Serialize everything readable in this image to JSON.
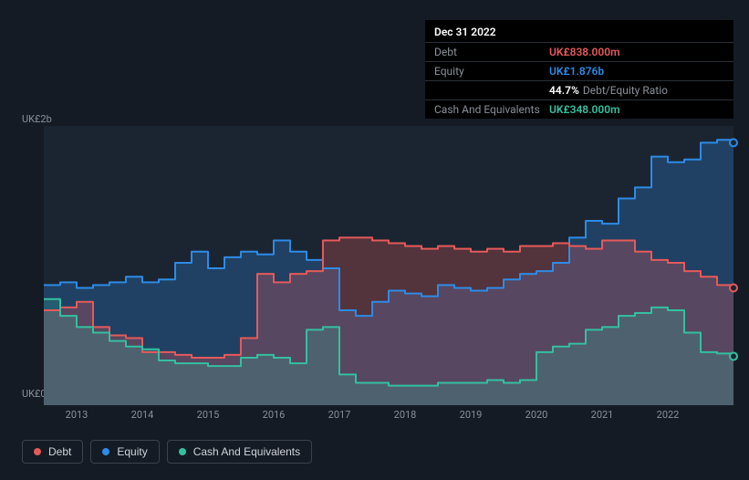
{
  "tooltip": {
    "date": "Dec 31 2022",
    "rows": {
      "debt": {
        "label": "Debt",
        "value": "UK£838.000m"
      },
      "equity": {
        "label": "Equity",
        "value": "UK£1.876b"
      },
      "ratio": {
        "value": "44.7%",
        "suffix": "Debt/Equity Ratio"
      },
      "cash": {
        "label": "Cash And Equivalents",
        "value": "UK£348.000m"
      }
    }
  },
  "chart": {
    "background_color": "#1b2531",
    "page_background": "#151b24",
    "ylim": [
      0,
      2.0
    ],
    "y_ticks": [
      {
        "v": 0,
        "label": "UK£0"
      },
      {
        "v": 2.0,
        "label": "UK£2b"
      }
    ],
    "x_domain": [
      2012.5,
      2023.0
    ],
    "x_ticks": [
      2013,
      2014,
      2015,
      2016,
      2017,
      2018,
      2019,
      2020,
      2021,
      2022
    ],
    "series": {
      "debt": {
        "label": "Debt",
        "stroke": "#e65a5a",
        "fill": "#e65a5a",
        "fill_opacity": 0.28,
        "line_width": 2,
        "values": [
          [
            2012.5,
            0.68
          ],
          [
            2012.75,
            0.7
          ],
          [
            2013.0,
            0.74
          ],
          [
            2013.25,
            0.56
          ],
          [
            2013.5,
            0.5
          ],
          [
            2013.75,
            0.48
          ],
          [
            2014.0,
            0.38
          ],
          [
            2014.25,
            0.38
          ],
          [
            2014.5,
            0.36
          ],
          [
            2014.75,
            0.34
          ],
          [
            2015.0,
            0.34
          ],
          [
            2015.25,
            0.36
          ],
          [
            2015.5,
            0.48
          ],
          [
            2015.75,
            0.94
          ],
          [
            2016.0,
            0.88
          ],
          [
            2016.25,
            0.94
          ],
          [
            2016.5,
            0.96
          ],
          [
            2016.75,
            1.18
          ],
          [
            2017.0,
            1.2
          ],
          [
            2017.25,
            1.2
          ],
          [
            2017.5,
            1.18
          ],
          [
            2017.75,
            1.16
          ],
          [
            2018.0,
            1.14
          ],
          [
            2018.25,
            1.12
          ],
          [
            2018.5,
            1.14
          ],
          [
            2018.75,
            1.12
          ],
          [
            2019.0,
            1.1
          ],
          [
            2019.25,
            1.12
          ],
          [
            2019.5,
            1.1
          ],
          [
            2019.75,
            1.14
          ],
          [
            2020.0,
            1.14
          ],
          [
            2020.25,
            1.16
          ],
          [
            2020.5,
            1.14
          ],
          [
            2020.75,
            1.12
          ],
          [
            2021.0,
            1.18
          ],
          [
            2021.25,
            1.18
          ],
          [
            2021.5,
            1.1
          ],
          [
            2021.75,
            1.04
          ],
          [
            2022.0,
            1.02
          ],
          [
            2022.25,
            0.96
          ],
          [
            2022.5,
            0.92
          ],
          [
            2022.75,
            0.86
          ],
          [
            2023.0,
            0.84
          ]
        ]
      },
      "equity": {
        "label": "Equity",
        "stroke": "#2e8be6",
        "fill": "#2e8be6",
        "fill_opacity": 0.28,
        "line_width": 2,
        "values": [
          [
            2012.5,
            0.86
          ],
          [
            2012.75,
            0.88
          ],
          [
            2013.0,
            0.84
          ],
          [
            2013.25,
            0.86
          ],
          [
            2013.5,
            0.88
          ],
          [
            2013.75,
            0.92
          ],
          [
            2014.0,
            0.88
          ],
          [
            2014.25,
            0.9
          ],
          [
            2014.5,
            1.02
          ],
          [
            2014.75,
            1.1
          ],
          [
            2015.0,
            0.98
          ],
          [
            2015.25,
            1.06
          ],
          [
            2015.5,
            1.1
          ],
          [
            2015.75,
            1.08
          ],
          [
            2016.0,
            1.18
          ],
          [
            2016.25,
            1.1
          ],
          [
            2016.5,
            1.04
          ],
          [
            2016.75,
            0.98
          ],
          [
            2017.0,
            0.68
          ],
          [
            2017.25,
            0.64
          ],
          [
            2017.5,
            0.74
          ],
          [
            2017.75,
            0.82
          ],
          [
            2018.0,
            0.8
          ],
          [
            2018.25,
            0.78
          ],
          [
            2018.5,
            0.86
          ],
          [
            2018.75,
            0.84
          ],
          [
            2019.0,
            0.82
          ],
          [
            2019.25,
            0.84
          ],
          [
            2019.5,
            0.9
          ],
          [
            2019.75,
            0.94
          ],
          [
            2020.0,
            0.96
          ],
          [
            2020.25,
            1.02
          ],
          [
            2020.5,
            1.2
          ],
          [
            2020.75,
            1.32
          ],
          [
            2021.0,
            1.3
          ],
          [
            2021.25,
            1.48
          ],
          [
            2021.5,
            1.56
          ],
          [
            2021.75,
            1.78
          ],
          [
            2022.0,
            1.74
          ],
          [
            2022.25,
            1.76
          ],
          [
            2022.5,
            1.88
          ],
          [
            2022.75,
            1.9
          ],
          [
            2023.0,
            1.88
          ]
        ]
      },
      "cash": {
        "label": "Cash And Equivalents",
        "stroke": "#34c0a0",
        "fill": "#34c0a0",
        "fill_opacity": 0.22,
        "line_width": 2,
        "values": [
          [
            2012.5,
            0.76
          ],
          [
            2012.75,
            0.64
          ],
          [
            2013.0,
            0.56
          ],
          [
            2013.25,
            0.52
          ],
          [
            2013.5,
            0.46
          ],
          [
            2013.75,
            0.42
          ],
          [
            2014.0,
            0.4
          ],
          [
            2014.25,
            0.32
          ],
          [
            2014.5,
            0.3
          ],
          [
            2014.75,
            0.3
          ],
          [
            2015.0,
            0.28
          ],
          [
            2015.25,
            0.28
          ],
          [
            2015.5,
            0.34
          ],
          [
            2015.75,
            0.36
          ],
          [
            2016.0,
            0.34
          ],
          [
            2016.25,
            0.3
          ],
          [
            2016.5,
            0.54
          ],
          [
            2016.75,
            0.56
          ],
          [
            2017.0,
            0.22
          ],
          [
            2017.25,
            0.16
          ],
          [
            2017.5,
            0.16
          ],
          [
            2017.75,
            0.14
          ],
          [
            2018.0,
            0.14
          ],
          [
            2018.25,
            0.14
          ],
          [
            2018.5,
            0.16
          ],
          [
            2018.75,
            0.16
          ],
          [
            2019.0,
            0.16
          ],
          [
            2019.25,
            0.18
          ],
          [
            2019.5,
            0.16
          ],
          [
            2019.75,
            0.18
          ],
          [
            2020.0,
            0.38
          ],
          [
            2020.25,
            0.42
          ],
          [
            2020.5,
            0.44
          ],
          [
            2020.75,
            0.54
          ],
          [
            2021.0,
            0.56
          ],
          [
            2021.25,
            0.64
          ],
          [
            2021.5,
            0.66
          ],
          [
            2021.75,
            0.7
          ],
          [
            2022.0,
            0.68
          ],
          [
            2022.25,
            0.52
          ],
          [
            2022.5,
            0.38
          ],
          [
            2022.75,
            0.37
          ],
          [
            2023.0,
            0.35
          ]
        ]
      }
    },
    "draw_order": [
      "equity",
      "debt",
      "cash"
    ]
  },
  "legend": {
    "items": [
      {
        "key": "debt",
        "label": "Debt",
        "color": "#e65a5a"
      },
      {
        "key": "equity",
        "label": "Equity",
        "color": "#2e8be6"
      },
      {
        "key": "cash",
        "label": "Cash And Equivalents",
        "color": "#34c0a0"
      }
    ]
  }
}
